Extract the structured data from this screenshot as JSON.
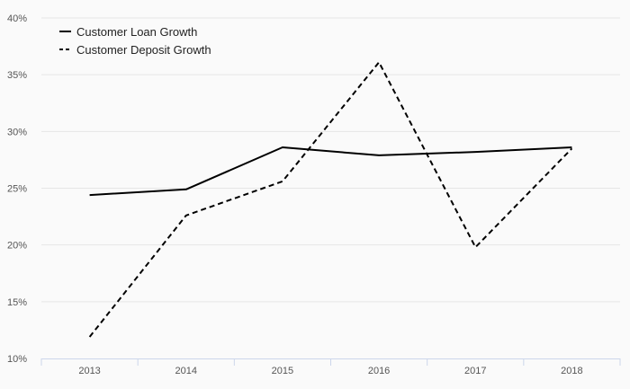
{
  "chart_data": {
    "type": "line",
    "title": "",
    "xlabel": "",
    "ylabel": "",
    "categories": [
      "2013",
      "2014",
      "2015",
      "2016",
      "2017",
      "2018"
    ],
    "series": [
      {
        "name": "Customer Loan Growth",
        "values": [
          24.4,
          24.9,
          28.6,
          27.9,
          28.2,
          28.6
        ],
        "style": "solid",
        "color": "#000000"
      },
      {
        "name": "Customer Deposit Growth",
        "values": [
          11.9,
          22.6,
          25.6,
          36.1,
          19.8,
          28.5
        ],
        "style": "dashed",
        "color": "#000000"
      }
    ],
    "ylim": [
      10,
      40
    ],
    "yticks": [
      10,
      15,
      20,
      25,
      30,
      35,
      40
    ],
    "ytick_labels": [
      "10%",
      "15%",
      "20%",
      "25%",
      "30%",
      "35%",
      "40%"
    ],
    "grid": "horizontal",
    "legend_position": "top-left",
    "colors": {
      "background": "#fafafa",
      "grid": "#e6e6e6",
      "axis": "#ccd6eb"
    }
  }
}
